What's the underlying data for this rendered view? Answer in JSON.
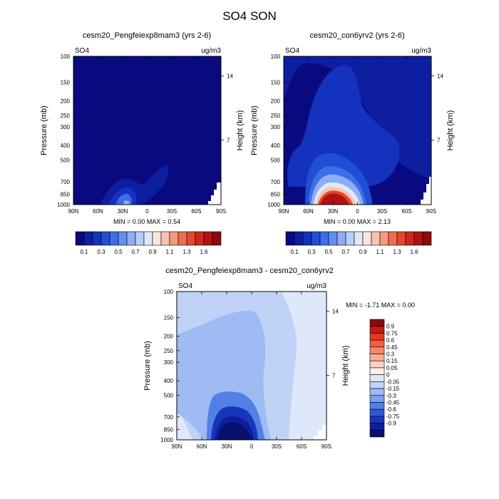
{
  "page_title": "SO4 SON",
  "chart_data": [
    {
      "type": "heatmap",
      "title": "cesm20_Pengfeiexp8mam3 (yrs 2-6)",
      "corner_left": "SO4",
      "corner_right": "ug/m3",
      "ylabel": "Pressure (mb)",
      "ylabel_right": "Height (km)",
      "x_ticks": [
        "90N",
        "60N",
        "30N",
        "0",
        "30S",
        "60S",
        "90S"
      ],
      "x_values": [
        90,
        60,
        30,
        0,
        -30,
        -60,
        -90
      ],
      "y_ticks": [
        "100",
        "150",
        "200",
        "250",
        "300",
        "400",
        "500",
        "700",
        "850",
        "1000"
      ],
      "y_values": [
        100,
        150,
        200,
        250,
        300,
        400,
        500,
        700,
        850,
        1000
      ],
      "y_scale": "log",
      "height_ticks": [
        "14",
        "7"
      ],
      "height_values": [
        14,
        7
      ],
      "min_max_text": "MIN =  0.00  MAX =  0.54",
      "min": 0.0,
      "max": 0.54,
      "peak_lat": 35,
      "peak_pressure": 950
    },
    {
      "type": "heatmap",
      "title": "cesm20_con6yrv2 (yrs 2-6)",
      "corner_left": "SO4",
      "corner_right": "ug/m3",
      "ylabel": "Pressure (mb)",
      "ylabel_right": "Height (km)",
      "x_ticks": [
        "90N",
        "60N",
        "30N",
        "0",
        "30S",
        "60S",
        "90S"
      ],
      "x_values": [
        90,
        60,
        30,
        0,
        -30,
        -60,
        -90
      ],
      "y_ticks": [
        "100",
        "150",
        "200",
        "250",
        "300",
        "400",
        "500",
        "700",
        "850",
        "1000"
      ],
      "y_values": [
        100,
        150,
        200,
        250,
        300,
        400,
        500,
        700,
        850,
        1000
      ],
      "y_scale": "log",
      "height_ticks": [
        "14",
        "7"
      ],
      "height_values": [
        14,
        7
      ],
      "min_max_text": "MIN =  0.00  MAX =  2.13",
      "min": 0.0,
      "max": 2.13,
      "peak_lat": 25,
      "peak_pressure": 950
    },
    {
      "type": "heatmap",
      "title": "cesm20_Pengfeiexp8mam3 - cesm20_con6yrv2",
      "corner_left": "SO4",
      "corner_right": "ug/m3",
      "ylabel": "Pressure (mb)",
      "ylabel_right": "Height (km)",
      "x_ticks": [
        "90N",
        "60N",
        "30N",
        "0",
        "30S",
        "60S",
        "90S"
      ],
      "x_values": [
        90,
        60,
        30,
        0,
        -30,
        -60,
        -90
      ],
      "y_ticks": [
        "100",
        "150",
        "200",
        "250",
        "300",
        "400",
        "500",
        "700",
        "850",
        "1000"
      ],
      "y_values": [
        100,
        150,
        200,
        250,
        300,
        400,
        500,
        700,
        850,
        1000
      ],
      "y_scale": "log",
      "height_ticks": [
        "14",
        "7"
      ],
      "height_values": [
        14,
        7
      ],
      "min_max_text": "MIN =  -1.71  MAX =   0.00",
      "min": -1.71,
      "max": 0.0,
      "peak_lat": 25,
      "peak_pressure": 950
    }
  ],
  "colorbar_abs": {
    "labels": [
      "0.1",
      "0.3",
      "0.5",
      "0.7",
      "0.9",
      "1.1",
      "1.3",
      "1.6"
    ],
    "colors": [
      "#0a0a80",
      "#0e1ea0",
      "#1432be",
      "#1e50d6",
      "#3c6ee6",
      "#648ff0",
      "#8eadf5",
      "#b8cdf8",
      "#dfe8fb",
      "#fbe6dc",
      "#f8c2ae",
      "#f59a7f",
      "#ef6e4c",
      "#e6462a",
      "#d0261a",
      "#b01410",
      "#8c0a0a"
    ]
  },
  "colorbar_diff": {
    "labels": [
      "0.9",
      "0.75",
      "0.6",
      "0.45",
      "0.3",
      "0.15",
      "0.05",
      "0",
      "-0.05",
      "-0.15",
      "-0.3",
      "-0.45",
      "-0.6",
      "-0.75",
      "-0.9"
    ],
    "colors": [
      "#8c0a0a",
      "#c21a12",
      "#e23a1e",
      "#f0603e",
      "#f5876a",
      "#f8ad95",
      "#fbd3c2",
      "#fbeee6",
      "#e0e9fa",
      "#c0d3f7",
      "#9ebbf4",
      "#7aa0ee",
      "#5280e4",
      "#2e5ad8",
      "#1636bc",
      "#0c1e9c",
      "#08106e"
    ]
  }
}
